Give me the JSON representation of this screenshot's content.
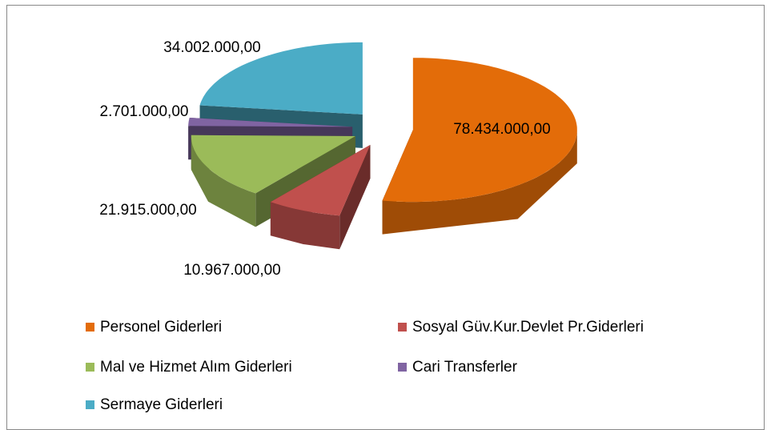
{
  "chart_data": {
    "type": "pie",
    "categories": [
      "Personel Giderleri",
      "Sosyal Güv.Kur.Devlet Pr.Giderleri",
      "Mal ve Hizmet Alım Giderleri",
      "Cari Transferler",
      "Sermaye Giderleri"
    ],
    "values": [
      78434000,
      10967000,
      21915000,
      2701000,
      34002000
    ],
    "value_labels": [
      "78.434.000,00",
      "10.967.000,00",
      "21.915.000,00",
      "2.701.000,00",
      "34.002.000,00"
    ],
    "colors": [
      "#e36c09",
      "#c0504d",
      "#9bbb59",
      "#8064a2",
      "#4bacc6"
    ],
    "legend": "bottom"
  }
}
